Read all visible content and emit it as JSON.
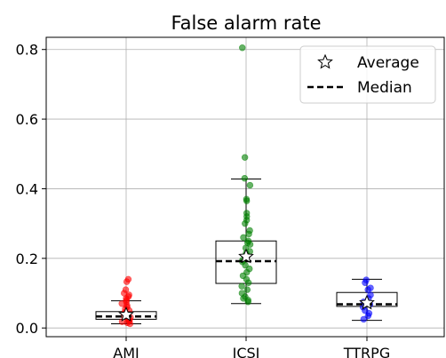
{
  "chart_data": {
    "type": "box",
    "title": "False alarm rate",
    "xlabel": "",
    "ylabel": "",
    "ylim": [
      -0.025,
      0.835
    ],
    "yticks": [
      0.0,
      0.2,
      0.4,
      0.6,
      0.8
    ],
    "ytick_labels": [
      "0.0",
      "0.2",
      "0.4",
      "0.6",
      "0.8"
    ],
    "grid": true,
    "legend": {
      "placement": "top-right",
      "entries": [
        {
          "label": "Average",
          "marker": "star"
        },
        {
          "label": "Median",
          "marker": "dashed-line"
        }
      ]
    },
    "categories": [
      "AMI",
      "ICSI",
      "TTRPG"
    ],
    "series": [
      {
        "category": "AMI",
        "color": "#ff0000",
        "q1": 0.025,
        "median": 0.033,
        "q3": 0.047,
        "whisker_low": 0.012,
        "whisker_high": 0.078,
        "mean": 0.038,
        "points": [
          0.14,
          0.133,
          0.11,
          0.1,
          0.095,
          0.09,
          0.085,
          0.08,
          0.075,
          0.07,
          0.065,
          0.06,
          0.055,
          0.05,
          0.045,
          0.04,
          0.035,
          0.03,
          0.025,
          0.022,
          0.02,
          0.018,
          0.015,
          0.012
        ]
      },
      {
        "category": "ICSI",
        "color": "#008000",
        "q1": 0.128,
        "median": 0.192,
        "q3": 0.25,
        "whisker_low": 0.07,
        "whisker_high": 0.428,
        "mean": 0.205,
        "points": [
          0.805,
          0.49,
          0.43,
          0.41,
          0.37,
          0.365,
          0.33,
          0.32,
          0.31,
          0.3,
          0.28,
          0.27,
          0.26,
          0.25,
          0.245,
          0.24,
          0.23,
          0.22,
          0.215,
          0.21,
          0.2,
          0.195,
          0.19,
          0.18,
          0.17,
          0.16,
          0.15,
          0.14,
          0.13,
          0.12,
          0.11,
          0.1,
          0.09,
          0.085,
          0.08,
          0.075
        ]
      },
      {
        "category": "TTRPG",
        "color": "#0000ff",
        "q1": 0.062,
        "median": 0.068,
        "q3": 0.102,
        "whisker_low": 0.022,
        "whisker_high": 0.14,
        "mean": 0.072,
        "points": [
          0.138,
          0.13,
          0.115,
          0.11,
          0.095,
          0.085,
          0.075,
          0.068,
          0.06,
          0.05,
          0.042,
          0.035,
          0.025
        ]
      }
    ]
  }
}
